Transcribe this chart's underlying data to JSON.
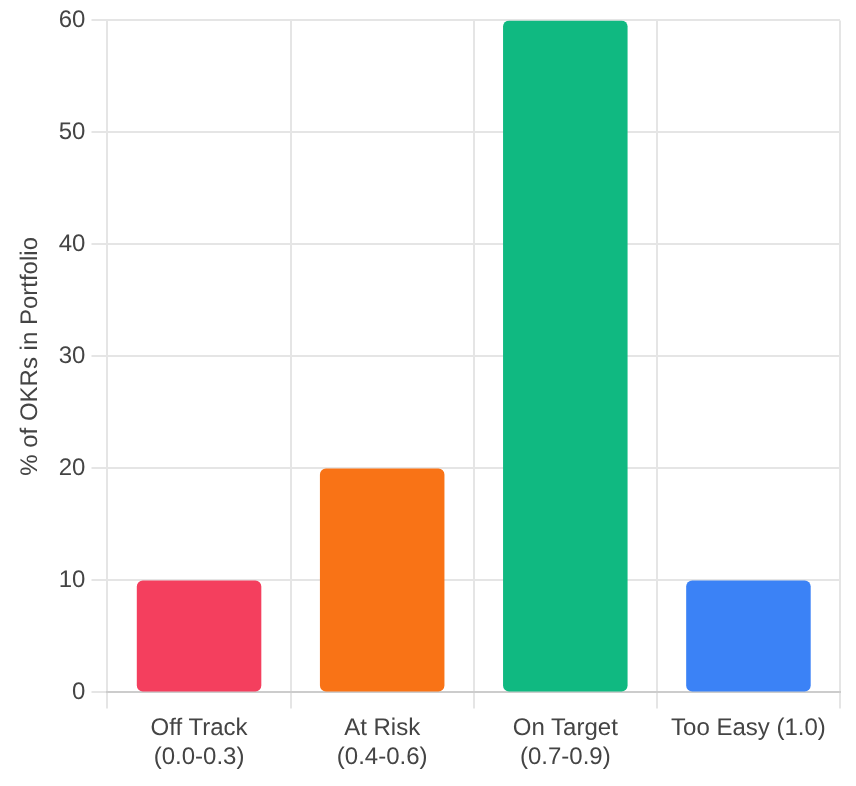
{
  "chart_data": {
    "type": "bar",
    "ylabel": "% of OKRs in Portfolio",
    "categories": [
      "Off Track\n(0.0-0.3)",
      "At Risk\n(0.4-0.6)",
      "On Target\n(0.7-0.9)",
      "Too Easy (1.0)"
    ],
    "values": [
      10,
      20,
      60,
      10
    ],
    "colors": [
      "#f43f5e",
      "#f97316",
      "#10b981",
      "#3b82f6"
    ],
    "ylim": [
      0,
      60
    ],
    "yticks": [
      0,
      10,
      20,
      30,
      40,
      50,
      60
    ],
    "grid": true
  }
}
